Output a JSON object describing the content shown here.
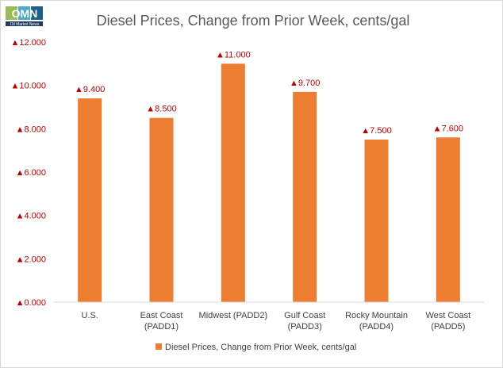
{
  "logo": {
    "letters": "OMN",
    "tagline": "Oil Market News"
  },
  "chart_data": {
    "type": "bar",
    "title": "Diesel Prices, Change from Prior Week, cents/gal",
    "categories": [
      [
        "U.S."
      ],
      [
        "East Coast",
        "(PADD1)"
      ],
      [
        "Midwest (PADD2)"
      ],
      [
        "Gulf Coast",
        "(PADD3)"
      ],
      [
        "Rocky Mountain",
        "(PADD4)"
      ],
      [
        "West Coast",
        "(PADD5)"
      ]
    ],
    "series": [
      {
        "name": "Diesel Prices, Change from Prior Week, cents/gal",
        "values": [
          9.4,
          8.5,
          11.0,
          9.7,
          7.5,
          7.6
        ]
      }
    ],
    "data_labels": [
      "▲9.400",
      "▲8.500",
      "▲11.000",
      "▲9.700",
      "▲7.500",
      "▲7.600"
    ],
    "yticks": [
      "▲0.000",
      "▲2.000",
      "▲4.000",
      "▲6.000",
      "▲8.000",
      "▲10.000",
      "▲12.000"
    ],
    "ylim": [
      0,
      12
    ],
    "legend_position": "bottom",
    "grid": false,
    "colors": {
      "bar": "#ed7d31",
      "labels": "#c00000",
      "axis": "#d9d9d9"
    }
  }
}
